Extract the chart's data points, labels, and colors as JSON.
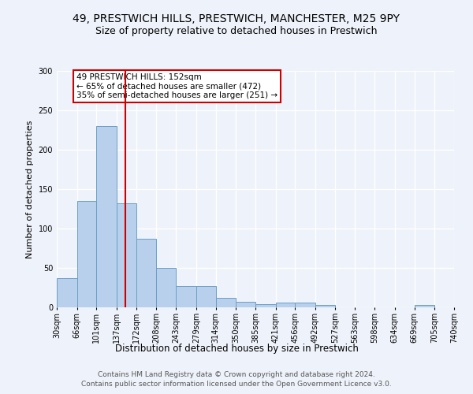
{
  "title1": "49, PRESTWICH HILLS, PRESTWICH, MANCHESTER, M25 9PY",
  "title2": "Size of property relative to detached houses in Prestwich",
  "xlabel": "Distribution of detached houses by size in Prestwich",
  "ylabel": "Number of detached properties",
  "bar_edges": [
    30,
    66,
    101,
    137,
    172,
    208,
    243,
    279,
    314,
    350,
    385,
    421,
    456,
    492,
    527,
    563,
    598,
    634,
    669,
    705,
    740
  ],
  "bar_values": [
    37,
    135,
    230,
    132,
    87,
    50,
    27,
    27,
    12,
    7,
    4,
    6,
    6,
    3,
    0,
    0,
    0,
    0,
    3,
    0
  ],
  "bar_color": "#b8d0eb",
  "bar_edge_color": "#6a9ec8",
  "property_size": 152,
  "red_line_color": "#cc0000",
  "annotation_text": "49 PRESTWICH HILLS: 152sqm\n← 65% of detached houses are smaller (472)\n35% of semi-detached houses are larger (251) →",
  "annotation_box_color": "#ffffff",
  "annotation_box_edge": "#cc0000",
  "ylim": [
    0,
    300
  ],
  "yticks": [
    0,
    50,
    100,
    150,
    200,
    250,
    300
  ],
  "footer1": "Contains HM Land Registry data © Crown copyright and database right 2024.",
  "footer2": "Contains public sector information licensed under the Open Government Licence v3.0.",
  "bg_color": "#eef2fa",
  "grid_color": "#ffffff",
  "title1_fontsize": 10,
  "title2_fontsize": 9,
  "tick_label_fontsize": 7,
  "ylabel_fontsize": 8,
  "xlabel_fontsize": 8.5,
  "footer_fontsize": 6.5,
  "annotation_fontsize": 7.5
}
